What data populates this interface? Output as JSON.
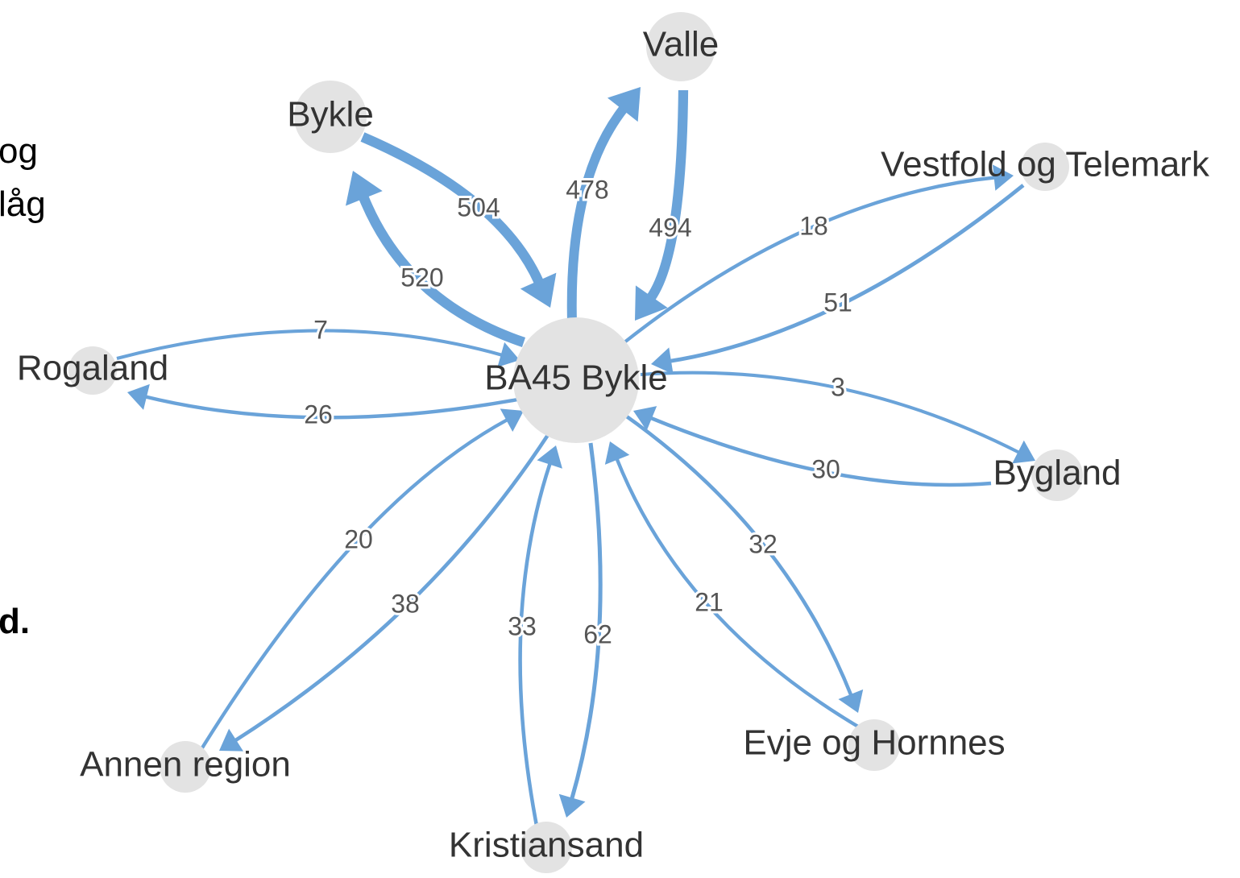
{
  "fragments": [
    "og",
    "låg",
    "d."
  ],
  "nodes": [
    {
      "label": "BA45 Bykle"
    },
    {
      "label": "Valle"
    },
    {
      "label": "Bykle"
    },
    {
      "label": "Vestfold og Telemark"
    },
    {
      "label": "Rogaland"
    },
    {
      "label": "Bygland"
    },
    {
      "label": "Evje og Hornnes"
    },
    {
      "label": "Kristiansand"
    },
    {
      "label": "Annen region"
    }
  ],
  "edges": [
    {
      "from": 2,
      "to": 0,
      "value": 504
    },
    {
      "from": 0,
      "to": 2,
      "value": 520
    },
    {
      "from": 0,
      "to": 1,
      "value": 478
    },
    {
      "from": 1,
      "to": 0,
      "value": 494
    },
    {
      "from": 0,
      "to": 3,
      "value": 18
    },
    {
      "from": 3,
      "to": 0,
      "value": 51
    },
    {
      "from": 0,
      "to": 5,
      "value": 3
    },
    {
      "from": 5,
      "to": 0,
      "value": 30
    },
    {
      "from": 0,
      "to": 6,
      "value": 32
    },
    {
      "from": 6,
      "to": 0,
      "value": 21
    },
    {
      "from": 0,
      "to": 7,
      "value": 62
    },
    {
      "from": 7,
      "to": 0,
      "value": 33
    },
    {
      "from": 0,
      "to": 8,
      "value": 38
    },
    {
      "from": 8,
      "to": 0,
      "value": 20
    },
    {
      "from": 4,
      "to": 0,
      "value": 7
    },
    {
      "from": 0,
      "to": 4,
      "value": 26
    }
  ]
}
